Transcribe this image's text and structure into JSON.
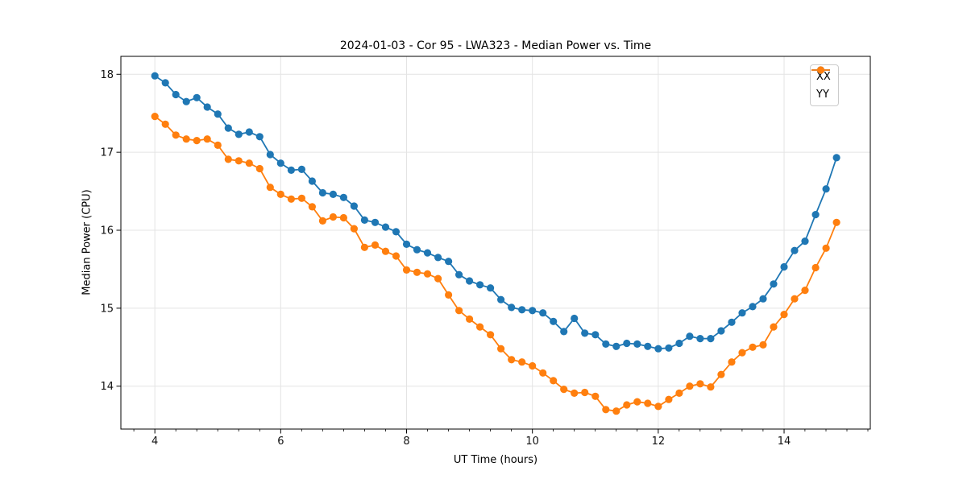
{
  "chart_data": {
    "type": "line",
    "title": "2024-01-03 - Cor 95 - LWA323 - Median Power vs. Time",
    "xlabel": "UT Time (hours)",
    "ylabel": "Median Power (CPU)",
    "xlim": [
      3.46,
      15.37
    ],
    "ylim": [
      13.45,
      18.23
    ],
    "xticks": [
      4,
      6,
      8,
      10,
      12,
      14
    ],
    "yticks": [
      14,
      15,
      16,
      17,
      18
    ],
    "x_minor_step": 0.3333,
    "grid": true,
    "marker": "circle",
    "legend_position": "upper right",
    "x": [
      4.0,
      4.1667,
      4.3333,
      4.5,
      4.6667,
      4.8333,
      5.0,
      5.1667,
      5.3333,
      5.5,
      5.6667,
      5.8333,
      6.0,
      6.1667,
      6.3333,
      6.5,
      6.6667,
      6.8333,
      7.0,
      7.1667,
      7.3333,
      7.5,
      7.6667,
      7.8333,
      8.0,
      8.1667,
      8.3333,
      8.5,
      8.6667,
      8.8333,
      9.0,
      9.1667,
      9.3333,
      9.5,
      9.6667,
      9.8333,
      10.0,
      10.1667,
      10.3333,
      10.5,
      10.6667,
      10.8333,
      11.0,
      11.1667,
      11.3333,
      11.5,
      11.6667,
      11.8333,
      12.0,
      12.1667,
      12.3333,
      12.5,
      12.6667,
      12.8333,
      13.0,
      13.1667,
      13.3333,
      13.5,
      13.6667,
      13.8333,
      14.0,
      14.1667,
      14.3333,
      14.5,
      14.6667,
      14.8333
    ],
    "series": [
      {
        "name": "XX",
        "color": "#1f77b4",
        "values": [
          17.98,
          17.89,
          17.74,
          17.65,
          17.7,
          17.58,
          17.49,
          17.31,
          17.23,
          17.26,
          17.2,
          16.97,
          16.86,
          16.77,
          16.78,
          16.63,
          16.48,
          16.46,
          16.42,
          16.31,
          16.13,
          16.1,
          16.04,
          15.98,
          15.82,
          15.75,
          15.71,
          15.65,
          15.6,
          15.43,
          15.35,
          15.3,
          15.26,
          15.11,
          15.01,
          14.98,
          14.97,
          14.94,
          14.83,
          14.7,
          14.87,
          14.68,
          14.66,
          14.54,
          14.51,
          14.55,
          14.54,
          14.51,
          14.48,
          14.49,
          14.55,
          14.64,
          14.61,
          14.61,
          14.71,
          14.82,
          14.94,
          15.02,
          15.12,
          15.31,
          15.53,
          15.74,
          15.86,
          16.2,
          16.53,
          16.93
        ]
      },
      {
        "name": "YY",
        "color": "#ff7f0e",
        "values": [
          17.46,
          17.36,
          17.22,
          17.17,
          17.15,
          17.17,
          17.09,
          16.91,
          16.89,
          16.86,
          16.79,
          16.55,
          16.46,
          16.4,
          16.41,
          16.3,
          16.12,
          16.17,
          16.16,
          16.02,
          15.78,
          15.81,
          15.73,
          15.67,
          15.49,
          15.46,
          15.44,
          15.38,
          15.17,
          14.97,
          14.86,
          14.76,
          14.66,
          14.48,
          14.34,
          14.31,
          14.26,
          14.17,
          14.07,
          13.96,
          13.91,
          13.92,
          13.87,
          13.7,
          13.68,
          13.76,
          13.8,
          13.78,
          13.74,
          13.83,
          13.91,
          14.0,
          14.03,
          13.99,
          14.15,
          14.31,
          14.43,
          14.5,
          14.53,
          14.76,
          14.92,
          15.12,
          15.23,
          15.52,
          15.77,
          16.1
        ]
      }
    ]
  }
}
